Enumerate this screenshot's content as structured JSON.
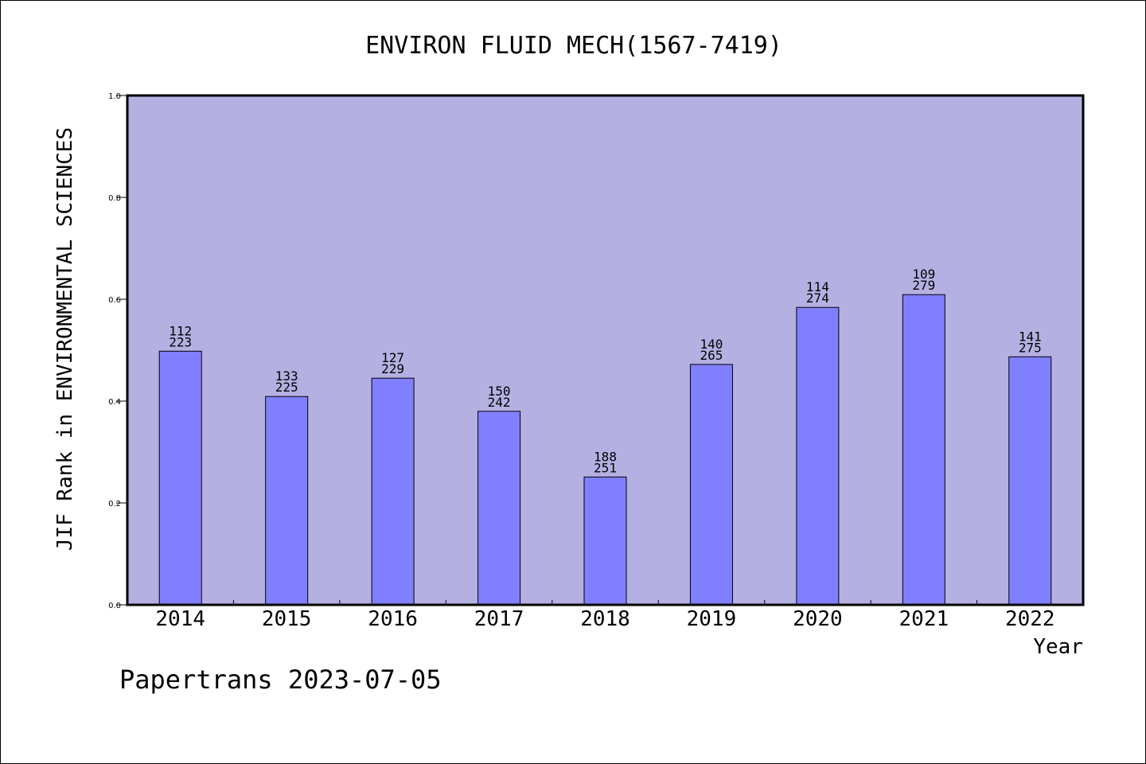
{
  "colors": {
    "plot_background": "#b5b0e2",
    "bar_fill": "#8080ff",
    "axis": "#000000"
  },
  "footer": "Papertrans 2023-07-05",
  "chart_data": {
    "type": "bar",
    "title": "ENVIRON FLUID MECH(1567-7419)",
    "xlabel": "Year",
    "ylabel": "JIF Rank in ENVIRONMENTAL SCIENCES",
    "ylim": [
      0,
      1.0
    ],
    "yticks": [
      "0.0",
      "0.2",
      "0.4",
      "0.6",
      "0.8",
      "1.0"
    ],
    "grid": false,
    "categories": [
      "2014",
      "2015",
      "2016",
      "2017",
      "2018",
      "2019",
      "2020",
      "2021",
      "2022"
    ],
    "values": [
      0.498,
      0.409,
      0.445,
      0.38,
      0.251,
      0.472,
      0.584,
      0.609,
      0.487
    ],
    "rank_labels": [
      "112",
      "133",
      "127",
      "150",
      "188",
      "140",
      "114",
      "109",
      "141"
    ],
    "total_labels": [
      "223",
      "225",
      "229",
      "242",
      "251",
      "265",
      "274",
      "279",
      "275"
    ]
  }
}
